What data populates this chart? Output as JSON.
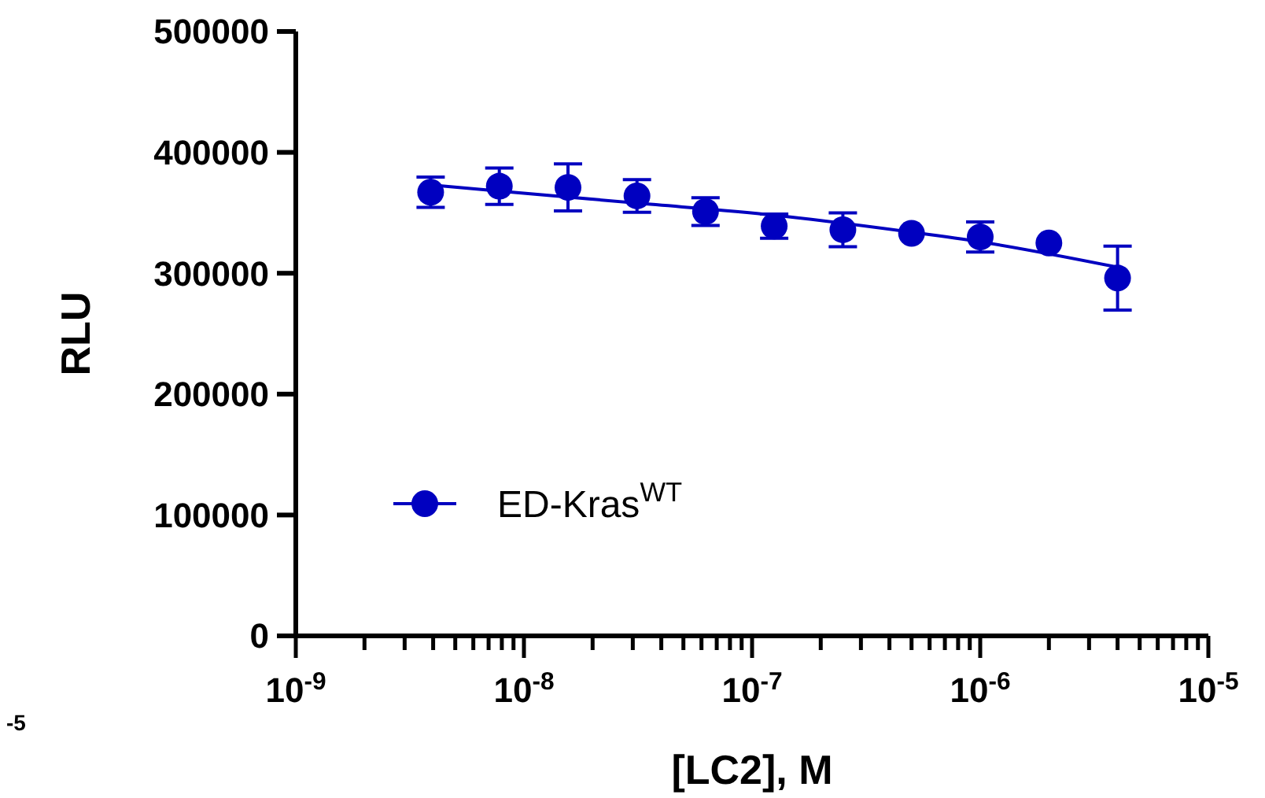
{
  "chart_data": {
    "type": "scatter",
    "xlabel": "[LC2], M",
    "ylabel": "RLU",
    "log": "x",
    "xlim": [
      1e-09,
      1e-05
    ],
    "ylim": [
      0,
      500000
    ],
    "yticks": [
      0,
      100000,
      200000,
      300000,
      400000,
      500000
    ],
    "xticks": [
      {
        "value": 1e-09,
        "label": "10$^{-9}$"
      },
      {
        "value": 2e-09,
        "label": null
      },
      {
        "value": 3e-09,
        "label": null
      },
      {
        "value": 4e-09,
        "label": null
      },
      {
        "value": 5e-09,
        "label": null
      },
      {
        "value": 6e-09,
        "label": null
      },
      {
        "value": 7e-09,
        "label": null
      },
      {
        "value": 8e-09,
        "label": null
      },
      {
        "value": 9e-09,
        "label": null
      },
      {
        "value": 1e-08,
        "label": "10$^{-8}$"
      },
      {
        "value": 2e-08,
        "label": null
      },
      {
        "value": 3e-08,
        "label": null
      },
      {
        "value": 4e-08,
        "label": null
      },
      {
        "value": 5e-08,
        "label": null
      },
      {
        "value": 6e-08,
        "label": null
      },
      {
        "value": 7e-08,
        "label": null
      },
      {
        "value": 8e-08,
        "label": null
      },
      {
        "value": 9e-08,
        "label": null
      },
      {
        "value": 1e-07,
        "label": "10$^{-7}$"
      },
      {
        "value": 2e-07,
        "label": null
      },
      {
        "value": 3e-07,
        "label": null
      },
      {
        "value": 4e-07,
        "label": null
      },
      {
        "value": 5e-07,
        "label": null
      },
      {
        "value": 6e-07,
        "label": null
      },
      {
        "value": 7e-07,
        "label": null
      },
      {
        "value": 8e-07,
        "label": null
      },
      {
        "value": 9e-07,
        "label": null
      },
      {
        "value": 1e-06,
        "label": "10$^{-6}$"
      },
      {
        "value": 2e-06,
        "label": null
      },
      {
        "value": 3e-06,
        "label": null
      },
      {
        "value": 4e-06,
        "label": null
      },
      {
        "value": 5e-06,
        "label": null
      },
      {
        "value": 6e-06,
        "label": null
      },
      {
        "value": 7e-06,
        "label": null
      },
      {
        "value": 8e-06,
        "label": null
      },
      {
        "value": 9e-06,
        "label": null
      },
      {
        "value": 1e-05,
        "label": "10$^{-5}$"
      }
    ],
    "grid": false,
    "legend": "bottom left",
    "marker": "circle",
    "annotations": [
      "-5"
    ],
    "series": [
      {
        "name": "ED-Kras$^{WT}$",
        "color": "#0000c0",
        "x": [
          3.9e-09,
          7.8e-09,
          1.56e-08,
          3.13e-08,
          6.25e-08,
          1.25e-07,
          2.5e-07,
          5e-07,
          1e-06,
          2e-06,
          4e-06
        ],
        "values": [
          367000,
          372000,
          371000,
          364000,
          351000,
          339000,
          336000,
          333000,
          330000,
          325000,
          296000
        ],
        "errors": [
          12500,
          15000,
          19500,
          13500,
          11500,
          10000,
          14000,
          null,
          12500,
          null,
          26500
        ]
      },
      {
        "type": "line",
        "color": "#0000c0",
        "x": [
          3.9e-09,
          3.13e-08,
          1.25e-07,
          5e-07,
          1e-06,
          4e-06
        ],
        "values": [
          373000,
          358000,
          348000,
          334000,
          326000,
          305000
        ],
        "line_style": "solid",
        "marker": "none"
      }
    ]
  }
}
